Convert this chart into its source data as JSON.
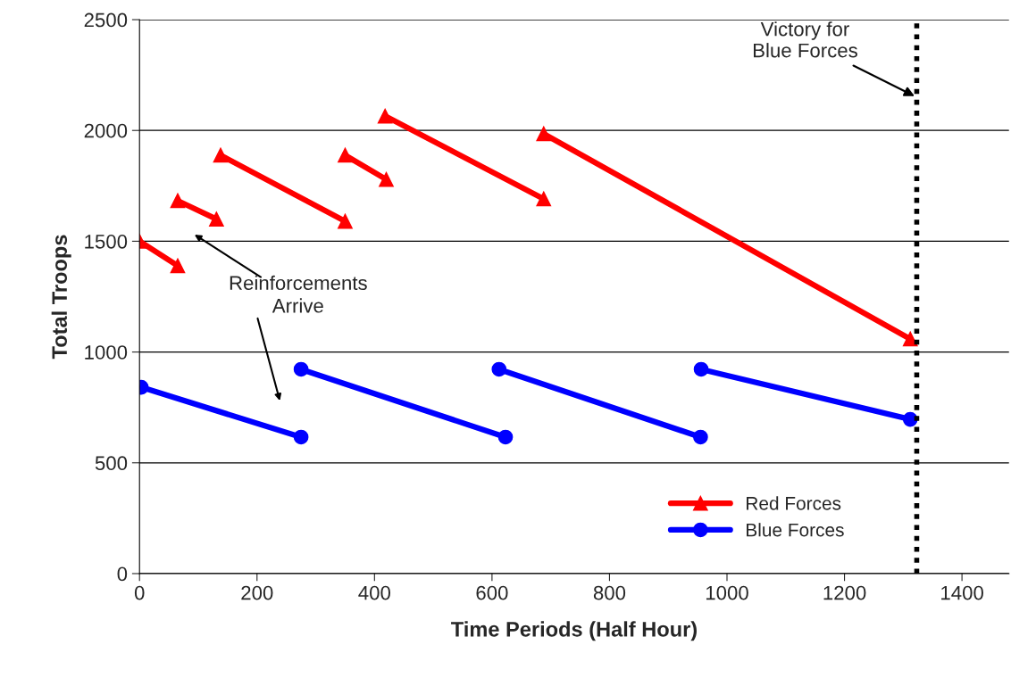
{
  "chart_data": {
    "type": "line",
    "xlabel": "Time Periods (Half Hour)",
    "ylabel": "Total Troops",
    "xlim": [
      0,
      1480
    ],
    "xticks": [
      0,
      200,
      400,
      600,
      800,
      1000,
      1200,
      1400
    ],
    "ylim": [
      0,
      2500
    ],
    "yticks": [
      0,
      500,
      1000,
      1500,
      2000,
      2500
    ],
    "grid": "y",
    "legend": "bottom right",
    "series": [
      {
        "name": "Red Forces",
        "color": "#ff0000",
        "marker": "triangle",
        "x": [
          0,
          65,
          null,
          65,
          131,
          null,
          138,
          350,
          null,
          350,
          420,
          null,
          418,
          688,
          null,
          688,
          1312
        ],
        "values": [
          1500,
          1389,
          null,
          1683,
          1600,
          null,
          1888,
          1590,
          null,
          1888,
          1779,
          null,
          2065,
          1691,
          null,
          1985,
          1059
        ]
      },
      {
        "name": "Blue Forces",
        "color": "#0000ff",
        "marker": "circle",
        "x": [
          3,
          275,
          null,
          275,
          623,
          null,
          612,
          955,
          null,
          956,
          1312
        ],
        "values": [
          841,
          616,
          null,
          922,
          616,
          null,
          922,
          616,
          null,
          922,
          696
        ]
      }
    ],
    "ref_lines": [
      {
        "axis": "x",
        "value": 1323,
        "label": "Victory for Blue Forces",
        "color": "#000000",
        "line_style": "dotted"
      }
    ],
    "annotations": [
      "Reinforcements Arrive"
    ]
  }
}
